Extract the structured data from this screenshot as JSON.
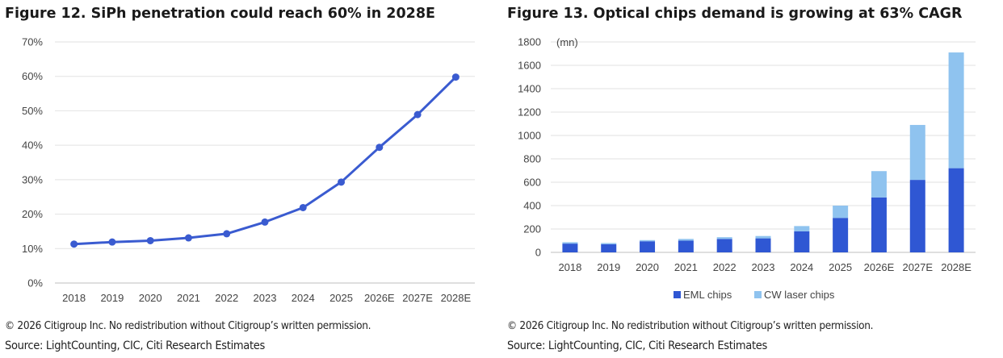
{
  "left": {
    "title": "Figure 12. SiPh penetration could reach 60% in 2028E",
    "copyright": "© 2026 Citigroup Inc. No redistribution without Citigroup’s written permission.",
    "source": "Source: LightCounting, CIC, Citi Research Estimates"
  },
  "right": {
    "title": "Figure 13. Optical chips demand is growing at 63% CAGR",
    "copyright": "© 2026 Citigroup Inc. No redistribution without Citigroup’s written permission.",
    "source": "Source: LightCounting, CIC, Citi Research Estimates"
  },
  "chart_data": [
    {
      "type": "line",
      "title": "Figure 12. SiPh penetration could reach 60% in 2028E",
      "categories": [
        "2018",
        "2019",
        "2020",
        "2021",
        "2022",
        "2023",
        "2024",
        "2025",
        "2026E",
        "2027E",
        "2028E"
      ],
      "series": [
        {
          "values": [
            11.3,
            11.9,
            12.3,
            13.1,
            14.3,
            17.7,
            21.9,
            29.3,
            39.4,
            48.9,
            59.8
          ],
          "color": "#3a5bd0"
        }
      ],
      "yticks": [
        "0%",
        "10%",
        "20%",
        "30%",
        "40%",
        "50%",
        "60%",
        "70%"
      ],
      "ylim": [
        0,
        70
      ],
      "grid": true,
      "legend": "none"
    },
    {
      "type": "bar",
      "stacked": true,
      "title": "Figure 13. Optical chips demand is growing at 63% CAGR",
      "unit_label": "(mn)",
      "categories": [
        "2018",
        "2019",
        "2020",
        "2021",
        "2022",
        "2023",
        "2024",
        "2025",
        "2026E",
        "2027E",
        "2028E"
      ],
      "series": [
        {
          "name": "EML chips",
          "color": "#2f57d3",
          "values": [
            75,
            70,
            95,
            100,
            115,
            120,
            180,
            295,
            470,
            620,
            720
          ]
        },
        {
          "name": "CW laser chips",
          "color": "#8fc3ef",
          "values": [
            12,
            10,
            10,
            15,
            15,
            20,
            45,
            105,
            225,
            470,
            990
          ]
        }
      ],
      "yticks": [
        "0",
        "200",
        "400",
        "600",
        "800",
        "1000",
        "1200",
        "1400",
        "1600",
        "1800"
      ],
      "ylim": [
        0,
        1800
      ],
      "grid": true,
      "legend": "bottom"
    }
  ]
}
